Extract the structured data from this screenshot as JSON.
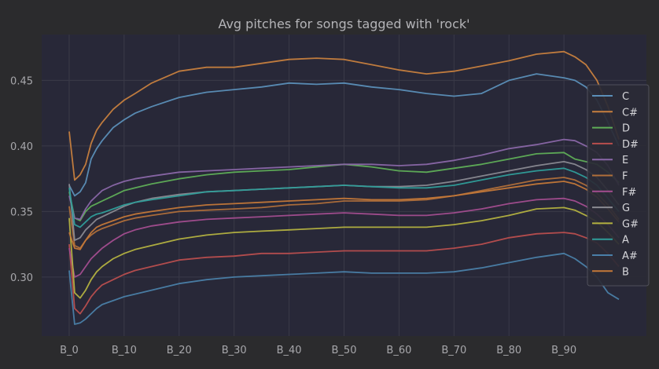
{
  "chart_data": {
    "type": "line",
    "title": "Avg pitches for songs tagged with 'rock'",
    "xlabel": "",
    "ylabel": "",
    "x_tick_labels": [
      "B_0",
      "B_10",
      "B_20",
      "B_30",
      "B_40",
      "B_50",
      "B_60",
      "B_70",
      "B_80",
      "B_90"
    ],
    "x_tick_positions": [
      0,
      10,
      20,
      30,
      40,
      50,
      60,
      70,
      80,
      90
    ],
    "xlim": [
      -5,
      105
    ],
    "ylim": [
      0.255,
      0.485
    ],
    "y_ticks": [
      0.3,
      0.35,
      0.4,
      0.45
    ],
    "y_tick_labels": [
      "0.30",
      "0.35",
      "0.40",
      "0.45"
    ],
    "grid": true,
    "legend_position": "right",
    "x": [
      0,
      1,
      2,
      3,
      4,
      5,
      6,
      8,
      10,
      12,
      15,
      20,
      25,
      30,
      35,
      40,
      45,
      50,
      55,
      60,
      65,
      70,
      75,
      80,
      85,
      90,
      92,
      94,
      96,
      98,
      100
    ],
    "series": [
      {
        "name": "C",
        "color": "#5b8fb8",
        "values": [
          0.37,
          0.362,
          0.365,
          0.372,
          0.39,
          0.398,
          0.404,
          0.414,
          0.42,
          0.425,
          0.43,
          0.437,
          0.441,
          0.443,
          0.445,
          0.448,
          0.447,
          0.448,
          0.445,
          0.443,
          0.44,
          0.438,
          0.44,
          0.45,
          0.455,
          0.452,
          0.45,
          0.445,
          0.435,
          0.418,
          0.4
        ]
      },
      {
        "name": "C#",
        "color": "#c77f3e",
        "values": [
          0.411,
          0.374,
          0.378,
          0.386,
          0.402,
          0.412,
          0.418,
          0.428,
          0.435,
          0.44,
          0.448,
          0.457,
          0.46,
          0.46,
          0.463,
          0.466,
          0.467,
          0.466,
          0.462,
          0.458,
          0.455,
          0.457,
          0.461,
          0.465,
          0.47,
          0.472,
          0.468,
          0.462,
          0.45,
          0.43,
          0.405
        ]
      },
      {
        "name": "D",
        "color": "#5fae57",
        "values": [
          0.365,
          0.345,
          0.343,
          0.35,
          0.354,
          0.356,
          0.358,
          0.362,
          0.366,
          0.368,
          0.371,
          0.375,
          0.378,
          0.38,
          0.381,
          0.382,
          0.384,
          0.386,
          0.384,
          0.381,
          0.38,
          0.383,
          0.386,
          0.39,
          0.394,
          0.395,
          0.39,
          0.388,
          0.386,
          0.38,
          0.372
        ]
      },
      {
        "name": "D#",
        "color": "#b94e4e",
        "values": [
          0.325,
          0.276,
          0.272,
          0.278,
          0.285,
          0.29,
          0.294,
          0.298,
          0.302,
          0.305,
          0.308,
          0.313,
          0.315,
          0.316,
          0.318,
          0.318,
          0.319,
          0.32,
          0.32,
          0.32,
          0.32,
          0.322,
          0.325,
          0.33,
          0.333,
          0.334,
          0.333,
          0.33,
          0.326,
          0.318,
          0.308
        ]
      },
      {
        "name": "E",
        "color": "#8a67a8",
        "values": [
          0.362,
          0.345,
          0.344,
          0.352,
          0.358,
          0.362,
          0.366,
          0.37,
          0.373,
          0.375,
          0.377,
          0.38,
          0.381,
          0.382,
          0.383,
          0.384,
          0.385,
          0.386,
          0.386,
          0.385,
          0.386,
          0.389,
          0.393,
          0.398,
          0.401,
          0.405,
          0.404,
          0.4,
          0.395,
          0.385,
          0.37
        ]
      },
      {
        "name": "F",
        "color": "#b06f3a",
        "values": [
          0.354,
          0.324,
          0.322,
          0.328,
          0.332,
          0.335,
          0.337,
          0.34,
          0.343,
          0.345,
          0.347,
          0.35,
          0.351,
          0.352,
          0.353,
          0.355,
          0.356,
          0.358,
          0.358,
          0.358,
          0.359,
          0.362,
          0.366,
          0.37,
          0.374,
          0.376,
          0.374,
          0.37,
          0.364,
          0.355,
          0.344
        ]
      },
      {
        "name": "F#",
        "color": "#a34d8f",
        "values": [
          0.322,
          0.3,
          0.302,
          0.308,
          0.314,
          0.318,
          0.322,
          0.328,
          0.333,
          0.336,
          0.339,
          0.342,
          0.344,
          0.345,
          0.346,
          0.347,
          0.348,
          0.349,
          0.348,
          0.347,
          0.347,
          0.349,
          0.352,
          0.356,
          0.359,
          0.36,
          0.358,
          0.354,
          0.348,
          0.34,
          0.33
        ]
      },
      {
        "name": "G",
        "color": "#8a8a92",
        "values": [
          0.371,
          0.328,
          0.33,
          0.336,
          0.34,
          0.344,
          0.346,
          0.35,
          0.354,
          0.357,
          0.36,
          0.363,
          0.365,
          0.366,
          0.367,
          0.368,
          0.369,
          0.37,
          0.369,
          0.369,
          0.37,
          0.373,
          0.377,
          0.381,
          0.385,
          0.388,
          0.386,
          0.382,
          0.376,
          0.366,
          0.355
        ]
      },
      {
        "name": "G#",
        "color": "#b4b240",
        "values": [
          0.345,
          0.288,
          0.284,
          0.29,
          0.298,
          0.304,
          0.308,
          0.314,
          0.318,
          0.321,
          0.324,
          0.329,
          0.332,
          0.334,
          0.335,
          0.336,
          0.337,
          0.338,
          0.338,
          0.338,
          0.338,
          0.34,
          0.343,
          0.347,
          0.352,
          0.353,
          0.351,
          0.347,
          0.342,
          0.334,
          0.325
        ]
      },
      {
        "name": "A",
        "color": "#2f9e9a",
        "values": [
          0.368,
          0.34,
          0.338,
          0.342,
          0.346,
          0.348,
          0.349,
          0.352,
          0.355,
          0.357,
          0.359,
          0.362,
          0.365,
          0.366,
          0.367,
          0.368,
          0.369,
          0.37,
          0.369,
          0.368,
          0.368,
          0.37,
          0.374,
          0.378,
          0.381,
          0.383,
          0.38,
          0.376,
          0.37,
          0.36,
          0.35
        ]
      },
      {
        "name": "A#",
        "color": "#4a7fa8",
        "values": [
          0.305,
          0.264,
          0.265,
          0.268,
          0.272,
          0.276,
          0.279,
          0.282,
          0.285,
          0.287,
          0.29,
          0.295,
          0.298,
          0.3,
          0.301,
          0.302,
          0.303,
          0.304,
          0.303,
          0.303,
          0.303,
          0.304,
          0.307,
          0.311,
          0.315,
          0.318,
          0.314,
          0.308,
          0.3,
          0.288,
          0.283
        ]
      },
      {
        "name": "B",
        "color": "#c47838",
        "values": [
          0.334,
          0.322,
          0.321,
          0.328,
          0.334,
          0.338,
          0.34,
          0.343,
          0.346,
          0.348,
          0.35,
          0.353,
          0.355,
          0.356,
          0.357,
          0.358,
          0.359,
          0.36,
          0.359,
          0.359,
          0.36,
          0.362,
          0.365,
          0.368,
          0.371,
          0.373,
          0.371,
          0.367,
          0.361,
          0.352,
          0.342
        ]
      }
    ]
  }
}
